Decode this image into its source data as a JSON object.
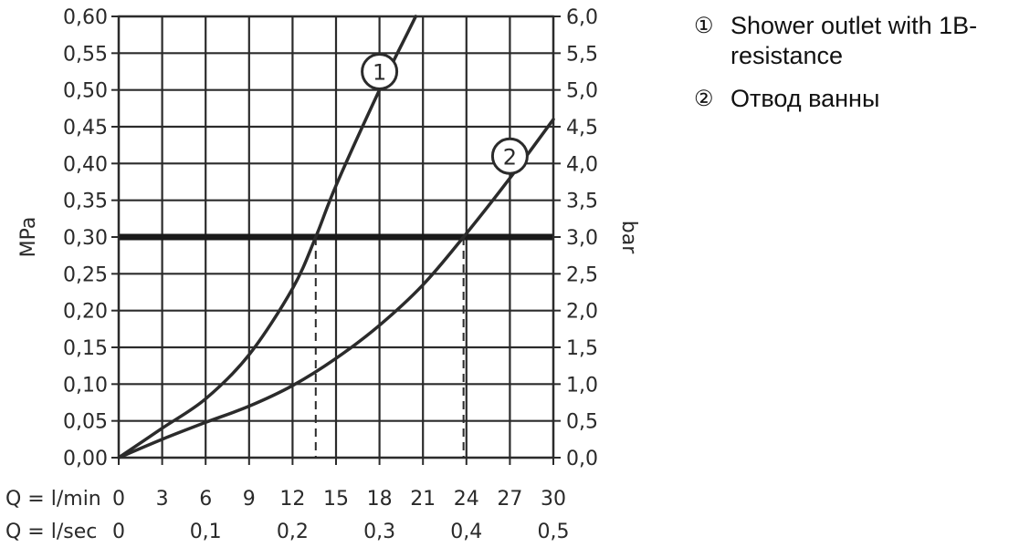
{
  "chart_data": {
    "type": "line",
    "left_axis": {
      "label": "MPa",
      "ticks": [
        "0,00",
        "0,05",
        "0,10",
        "0,15",
        "0,20",
        "0,25",
        "0,30",
        "0,35",
        "0,40",
        "0,45",
        "0,50",
        "0,55",
        "0,60"
      ],
      "range": [
        0,
        0.6
      ]
    },
    "right_axis": {
      "label": "bar",
      "ticks": [
        "0,0",
        "0,5",
        "1,0",
        "1,5",
        "2,0",
        "2,5",
        "3,0",
        "3,5",
        "4,0",
        "4,5",
        "5,0",
        "5,5",
        "6,0"
      ],
      "range": [
        0,
        6
      ]
    },
    "x_axis": {
      "range": [
        0,
        30
      ],
      "row1_label": "Q = l/min",
      "row1_ticks": [
        {
          "x": 0,
          "label": "0"
        },
        {
          "x": 3,
          "label": "3"
        },
        {
          "x": 6,
          "label": "6"
        },
        {
          "x": 9,
          "label": "9"
        },
        {
          "x": 12,
          "label": "12"
        },
        {
          "x": 15,
          "label": "15"
        },
        {
          "x": 18,
          "label": "18"
        },
        {
          "x": 21,
          "label": "21"
        },
        {
          "x": 24,
          "label": "24"
        },
        {
          "x": 27,
          "label": "27"
        },
        {
          "x": 30,
          "label": "30"
        }
      ],
      "row2_label": "Q = l/sec",
      "row2_ticks": [
        {
          "x": 0,
          "label": "0"
        },
        {
          "x": 6,
          "label": "0,1"
        },
        {
          "x": 12,
          "label": "0,2"
        },
        {
          "x": 18,
          "label": "0,3"
        },
        {
          "x": 24,
          "label": "0,4"
        },
        {
          "x": 30,
          "label": "0,5"
        }
      ]
    },
    "grid": true,
    "reference_line": {
      "y": 0.3
    },
    "drop_lines": [
      {
        "x": 13.6,
        "y": 0.3
      },
      {
        "x": 23.8,
        "y": 0.3
      }
    ],
    "series": [
      {
        "marker": "1",
        "marker_point": {
          "x": 18,
          "y": 0.525
        },
        "points": [
          {
            "x": 0,
            "y": 0
          },
          {
            "x": 3,
            "y": 0.04
          },
          {
            "x": 6,
            "y": 0.08
          },
          {
            "x": 9,
            "y": 0.14
          },
          {
            "x": 12,
            "y": 0.23
          },
          {
            "x": 13.6,
            "y": 0.3
          },
          {
            "x": 15,
            "y": 0.37
          },
          {
            "x": 18,
            "y": 0.5
          },
          {
            "x": 20,
            "y": 0.58
          },
          {
            "x": 20.5,
            "y": 0.6
          }
        ]
      },
      {
        "marker": "2",
        "marker_point": {
          "x": 27,
          "y": 0.41
        },
        "points": [
          {
            "x": 0,
            "y": 0
          },
          {
            "x": 3,
            "y": 0.025
          },
          {
            "x": 6,
            "y": 0.048
          },
          {
            "x": 9,
            "y": 0.07
          },
          {
            "x": 12,
            "y": 0.098
          },
          {
            "x": 15,
            "y": 0.135
          },
          {
            "x": 18,
            "y": 0.18
          },
          {
            "x": 21,
            "y": 0.235
          },
          {
            "x": 23.8,
            "y": 0.3
          },
          {
            "x": 27,
            "y": 0.38
          },
          {
            "x": 30,
            "y": 0.46
          }
        ]
      }
    ],
    "legend": [
      {
        "number": "①",
        "text": "Shower outlet with 1B-resistance"
      },
      {
        "number": "②",
        "text": "Отвод ванны"
      }
    ]
  }
}
